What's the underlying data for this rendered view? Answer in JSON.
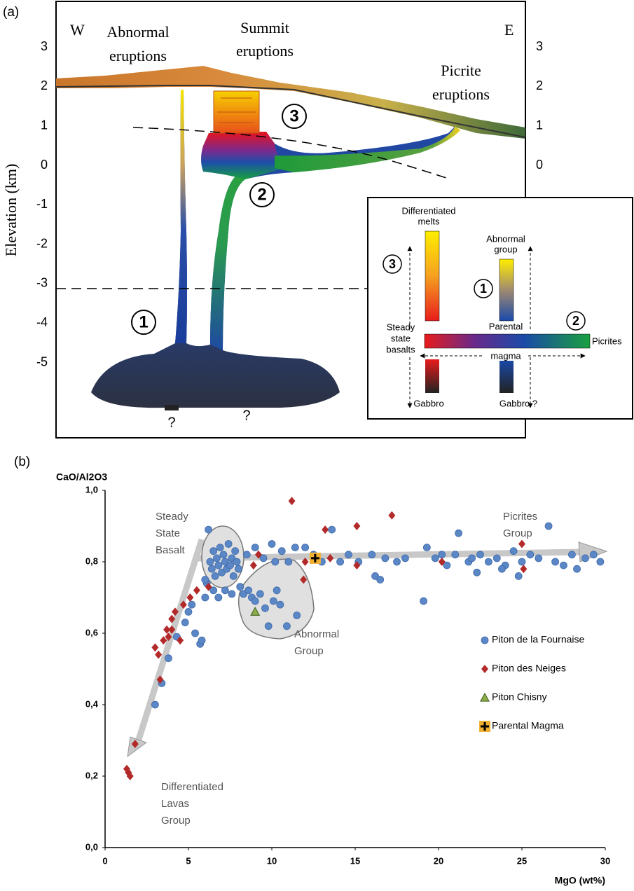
{
  "panel_a": {
    "label": "(a)",
    "west": "W",
    "east": "E",
    "abnormal_eruptions": [
      "Abnormal",
      "eruptions"
    ],
    "summit_eruptions": [
      "Summit",
      "eruptions"
    ],
    "picrite_eruptions": [
      "Picrite",
      "eruptions"
    ],
    "ylabel": "Elevation (km)",
    "yticks": [
      3,
      2,
      1,
      0,
      -1,
      -2,
      -3,
      -4,
      -5
    ],
    "y2ticks": [
      3,
      2,
      1,
      0
    ],
    "markers": [
      "1",
      "2",
      "3"
    ],
    "unknown": [
      "?",
      "?"
    ],
    "inset": {
      "differentiated_melts": [
        "Differentiated",
        "melts"
      ],
      "abnormal_group": [
        "Abnormal",
        "group"
      ],
      "steady_state_basalts": [
        "Steady",
        "state",
        "basalts"
      ],
      "parental": "Parental",
      "magma": "magma",
      "picrites": "Picrites",
      "gabbro_left": "Gabbro",
      "gabbro_right": "Gabbro ?",
      "markers": [
        "3",
        "1",
        "2"
      ]
    }
  },
  "chart_data": {
    "type": "scatter",
    "panel_label": "(b)",
    "ylabel": "CaO/Al2O3",
    "xlabel": "MgO (wt%)",
    "xlim": [
      0,
      30
    ],
    "ylim": [
      0,
      1
    ],
    "xticks": [
      0,
      5,
      10,
      15,
      20,
      25,
      30
    ],
    "yticks": [
      {
        "value": 0,
        "label": "0,0"
      },
      {
        "value": 0.2,
        "label": "0,2"
      },
      {
        "value": 0.4,
        "label": "0,4"
      },
      {
        "value": 0.6,
        "label": "0,6"
      },
      {
        "value": 0.8,
        "label": "0,8"
      },
      {
        "value": 1,
        "label": "1,0"
      }
    ],
    "annotations": [
      [
        "Steady",
        "State",
        "Basalt"
      ],
      [
        "Picrites",
        "Group"
      ],
      [
        "Abnormal",
        "Group"
      ],
      [
        "Differentiated",
        "Lavas",
        "Group"
      ]
    ],
    "series": [
      {
        "name": "Piton de la Fournaise",
        "color": "#5b87c7",
        "marker": "circle",
        "x": [
          3.0,
          3.4,
          3.8,
          4.3,
          4.8,
          5.0,
          5.2,
          5.4,
          5.7,
          5.8,
          6.0,
          6.1,
          6.2,
          6.3,
          6.4,
          6.5,
          6.6,
          6.7,
          6.8,
          6.9,
          7.0,
          7.1,
          7.2,
          7.3,
          7.4,
          7.5,
          7.6,
          7.7,
          7.8,
          7.9,
          6.5,
          6.8,
          7.2,
          7.6,
          8.1,
          8.3,
          8.6,
          8.8,
          9.0,
          9.3,
          9.6,
          9.8,
          10.1,
          10.3,
          10.5,
          10.9,
          11.5,
          8.5,
          9.0,
          9.5,
          10.0,
          10.2,
          10.6,
          11.0,
          11.4,
          12.0,
          12.5,
          13.0,
          13.6,
          14.1,
          14.6,
          15.2,
          16.0,
          16.2,
          16.5,
          16.8,
          19.1,
          19.3,
          19.8,
          20.5,
          21.0,
          21.2,
          21.8,
          22.3,
          22.5,
          23.0,
          23.5,
          24.0,
          24.5,
          25.0,
          25.5,
          26.0,
          26.6,
          27.0,
          27.5,
          28.0,
          28.3,
          28.8,
          29.3,
          29.7,
          24.8,
          23.8,
          22.0,
          20.2,
          18.0,
          17.5,
          8.0,
          6.0
        ],
        "values": [
          0.4,
          0.46,
          0.53,
          0.59,
          0.63,
          0.66,
          0.68,
          0.6,
          0.57,
          0.58,
          0.7,
          0.74,
          0.89,
          0.8,
          0.78,
          0.83,
          0.76,
          0.81,
          0.79,
          0.84,
          0.77,
          0.82,
          0.8,
          0.78,
          0.85,
          0.79,
          0.81,
          0.76,
          0.83,
          0.8,
          0.72,
          0.7,
          0.72,
          0.71,
          0.73,
          0.71,
          0.72,
          0.7,
          0.69,
          0.71,
          0.67,
          0.62,
          0.69,
          0.72,
          0.68,
          0.62,
          0.65,
          0.82,
          0.84,
          0.81,
          0.85,
          0.8,
          0.83,
          0.8,
          0.84,
          0.84,
          0.82,
          0.8,
          0.89,
          0.8,
          0.82,
          0.8,
          0.82,
          0.76,
          0.75,
          0.81,
          0.69,
          0.84,
          0.81,
          0.79,
          0.82,
          0.88,
          0.8,
          0.77,
          0.82,
          0.8,
          0.81,
          0.79,
          0.83,
          0.8,
          0.82,
          0.81,
          0.9,
          0.8,
          0.79,
          0.82,
          0.78,
          0.81,
          0.82,
          0.8,
          0.76,
          0.78,
          0.81,
          0.82,
          0.81,
          0.8,
          0.78,
          0.75
        ]
      },
      {
        "name": "Piton des Neiges",
        "color": "#b22a2a",
        "marker": "diamond",
        "x": [
          1.3,
          1.4,
          1.5,
          1.8,
          3.0,
          3.2,
          3.3,
          3.5,
          3.7,
          3.8,
          4.0,
          4.0,
          4.2,
          4.5,
          4.7,
          5.1,
          5.5,
          6.2,
          8.9,
          9.2,
          11.2,
          11.9,
          12.0,
          13.2,
          13.5,
          15.1,
          15.1,
          17.2,
          20.2,
          25.0,
          25.1
        ],
        "values": [
          0.22,
          0.21,
          0.2,
          0.29,
          0.56,
          0.54,
          0.47,
          0.58,
          0.61,
          0.59,
          0.61,
          0.64,
          0.66,
          0.58,
          0.68,
          0.7,
          0.72,
          0.73,
          0.79,
          0.82,
          0.97,
          0.75,
          0.8,
          0.89,
          0.81,
          0.9,
          0.79,
          0.93,
          0.8,
          0.85,
          0.78
        ]
      },
      {
        "name": "Piton Chisny",
        "color": "#8fae4a",
        "marker": "triangle",
        "x": [
          9.0
        ],
        "values": [
          0.66
        ]
      },
      {
        "name": "Parental Magma",
        "color": "#f2b030",
        "marker": "plus-square",
        "x": [
          12.6
        ],
        "values": [
          0.81
        ]
      }
    ]
  }
}
